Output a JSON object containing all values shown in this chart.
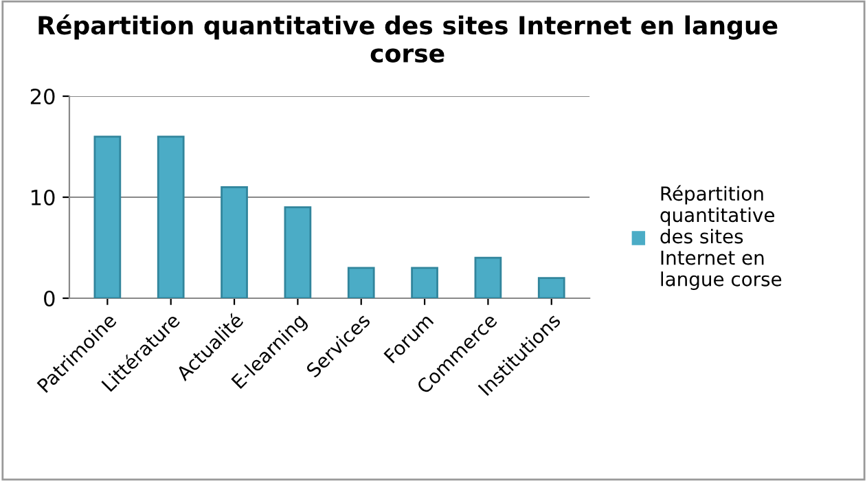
{
  "chart_data": {
    "type": "bar",
    "title": "Répartition quantitative des sites Internet en langue corse",
    "categories": [
      "Patrimoine",
      "Littérature",
      "Actualité",
      "E-learning",
      "Services",
      "Forum",
      "Commerce",
      "Institutions"
    ],
    "series": [
      {
        "name": "Répartition quantitative des sites Internet en langue corse",
        "color": "#4bacc6",
        "values": [
          16,
          16,
          11,
          9,
          3,
          3,
          4,
          2
        ]
      }
    ],
    "ylim": [
      0,
      20
    ],
    "yticks": [
      0,
      10,
      20
    ],
    "grid": "y",
    "legend": "right"
  }
}
